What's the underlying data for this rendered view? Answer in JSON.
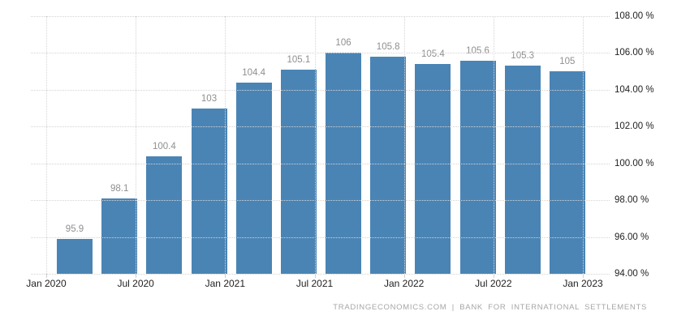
{
  "chart_data": {
    "type": "bar",
    "title": "",
    "frequency": "quarterly",
    "x_tick_labels": [
      "Jan 2020",
      "Jul 2020",
      "Jan 2021",
      "Jul 2021",
      "Jan 2022",
      "Jul 2022",
      "Jan 2023"
    ],
    "values": [
      95.9,
      98.1,
      100.4,
      103,
      104.4,
      105.1,
      106,
      105.8,
      105.4,
      105.6,
      105.3,
      105
    ],
    "bar_labels": [
      "95.9",
      "98.1",
      "100.4",
      "103",
      "104.4",
      "105.1",
      "106",
      "105.8",
      "105.4",
      "105.6",
      "105.3",
      "105"
    ],
    "ylim": [
      94,
      108
    ],
    "ytick_step": 2,
    "y_tick_labels": [
      "108.00 %",
      "106.00 %",
      "104.00 %",
      "102.00 %",
      "100.00 %",
      "98.00 %",
      "96.00 %",
      "94.00 %"
    ],
    "legend": "none",
    "grid": "dotted horizontal and vertical",
    "bar_color": "#4a84b5",
    "value_label_color": "#8f8f8f",
    "axis_label_color": "#222222",
    "gridline_color": "#d4d4d4",
    "attribution": "TRADINGECONOMICS.COM | BANK FOR INTERNATIONAL SETTLEMENTS"
  }
}
